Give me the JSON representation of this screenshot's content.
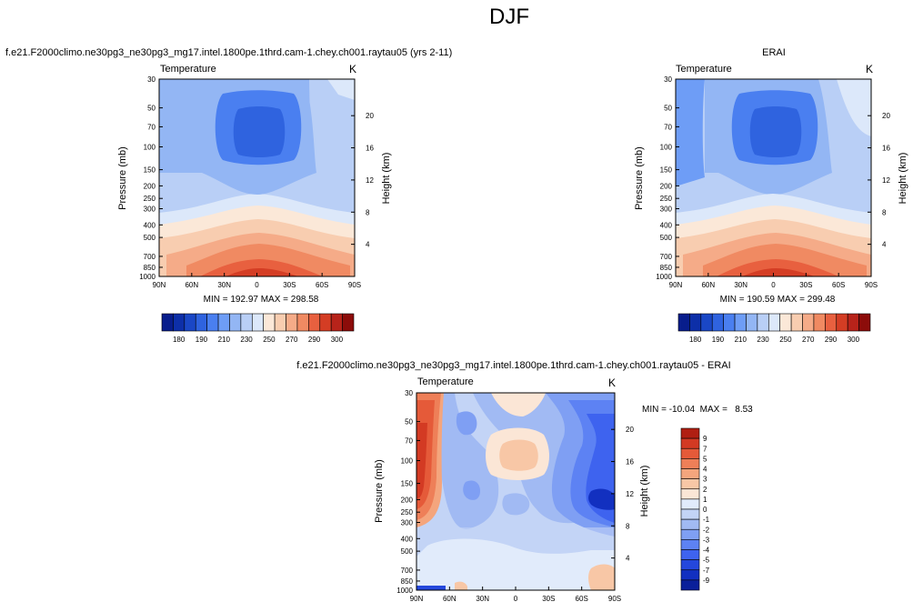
{
  "page": {
    "title": "DJF"
  },
  "colors": {
    "abs_scale": [
      "#081d8c",
      "#0d2fa8",
      "#1a47c6",
      "#2f63df",
      "#4a7ff0",
      "#6e9df6",
      "#93b6f4",
      "#b9cff6",
      "#dce8fa",
      "#fbe8d8",
      "#f8cdb0",
      "#f5ab88",
      "#f08a62",
      "#e8603f",
      "#d43d24",
      "#b7231a",
      "#8c0c0a"
    ],
    "diff_scale": [
      "#0a1f9a",
      "#1230c0",
      "#2447dc",
      "#3e63ef",
      "#5d82f3",
      "#7f9ff3",
      "#a1baf3",
      "#c3d4f6",
      "#e1ebfb",
      "#fbe6d6",
      "#f8c7a6",
      "#f4a57d",
      "#ee7f58",
      "#e55a39",
      "#d33a23",
      "#b01f12"
    ]
  },
  "chart_data": [
    {
      "type": "heatmap",
      "id": "model",
      "title": "f.e21.F2000climo.ne30pg3_ne30pg3_mg17.intel.1800pe.1thrd.cam-1.chey.ch001.raytau05 (yrs 2-11)",
      "left_label": "Temperature",
      "unit_label": "K",
      "ylabel": "Pressure (mb)",
      "ylabel_right": "Height (km)",
      "x_ticks": [
        "90N",
        "60N",
        "30N",
        "0",
        "30S",
        "60S",
        "90S"
      ],
      "y_ticks": [
        "30",
        "50",
        "70",
        "100",
        "150",
        "200",
        "250",
        "300",
        "400",
        "500",
        "700",
        "850",
        "1000"
      ],
      "y_ticks_right": [
        "20",
        "16",
        "12",
        "8",
        "4"
      ],
      "y_range": [
        30,
        1000
      ],
      "x_range": [
        90,
        -90
      ],
      "y_scale": "log",
      "stats": "MIN = 192.97  MAX = 298.58",
      "min": 192.97,
      "max": 298.58
    },
    {
      "type": "heatmap",
      "id": "obs",
      "title": "ERAI",
      "left_label": "Temperature",
      "unit_label": "K",
      "ylabel": "Pressure (mb)",
      "ylabel_right": "Height (km)",
      "x_ticks": [
        "90N",
        "60N",
        "30N",
        "0",
        "30S",
        "60S",
        "90S"
      ],
      "y_ticks": [
        "30",
        "50",
        "70",
        "100",
        "150",
        "200",
        "250",
        "300",
        "400",
        "500",
        "700",
        "850",
        "1000"
      ],
      "y_ticks_right": [
        "20",
        "16",
        "12",
        "8",
        "4"
      ],
      "y_range": [
        30,
        1000
      ],
      "x_range": [
        90,
        -90
      ],
      "y_scale": "log",
      "stats": "MIN = 190.59  MAX = 299.48",
      "min": 190.59,
      "max": 299.48
    },
    {
      "type": "heatmap",
      "id": "diff",
      "title": "f.e21.F2000climo.ne30pg3_ne30pg3_mg17.intel.1800pe.1thrd.cam-1.chey.ch001.raytau05 - ERAI",
      "left_label": "Temperature",
      "unit_label": "K",
      "ylabel": "Pressure (mb)",
      "ylabel_right": "Height (km)",
      "x_ticks": [
        "90N",
        "60N",
        "30N",
        "0",
        "30S",
        "60S",
        "90S"
      ],
      "y_ticks": [
        "30",
        "50",
        "70",
        "100",
        "150",
        "200",
        "250",
        "300",
        "400",
        "500",
        "700",
        "850",
        "1000"
      ],
      "y_ticks_right": [
        "20",
        "16",
        "12",
        "8",
        "4"
      ],
      "y_range": [
        30,
        1000
      ],
      "x_range": [
        90,
        -90
      ],
      "y_scale": "log",
      "stats": "MIN = -10.04  MAX =   8.53",
      "min": -10.04,
      "max": 8.53
    }
  ],
  "colorbars": {
    "abs_labels": [
      "180",
      "190",
      "210",
      "230",
      "250",
      "270",
      "290",
      "300"
    ],
    "diff_labels": [
      "9",
      "7",
      "5",
      "4",
      "3",
      "2",
      "1",
      "0",
      "-1",
      "-2",
      "-3",
      "-4",
      "-5",
      "-7",
      "-9"
    ]
  }
}
